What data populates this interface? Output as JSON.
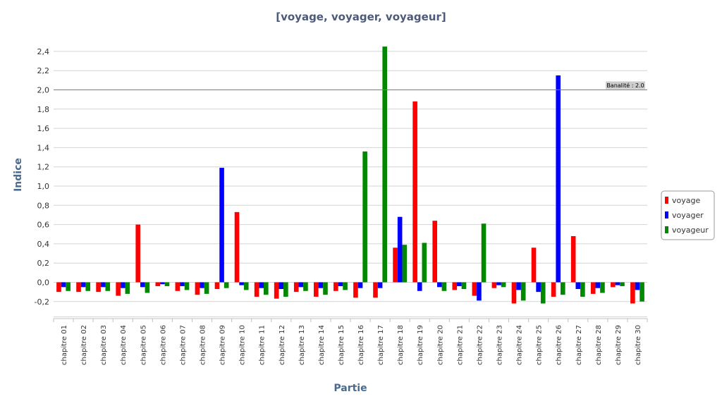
{
  "chart_data": {
    "type": "bar",
    "title": "[voyage, voyager, voyageur]",
    "xlabel": "Partie",
    "ylabel": "Indice",
    "ylim": [
      -0.3,
      2.5
    ],
    "yticks": [
      "2,4",
      "2,2",
      "2,0",
      "1,8",
      "1,6",
      "1,4",
      "1,2",
      "1,0",
      "0,8",
      "0,6",
      "0,4",
      "0,2",
      "0,0",
      "-0,2"
    ],
    "ytick_values": [
      2.4,
      2.2,
      2.0,
      1.8,
      1.6,
      1.4,
      1.2,
      1.0,
      0.8,
      0.6,
      0.4,
      0.2,
      0.0,
      -0.2
    ],
    "grid": true,
    "legend_position": "right",
    "threshold": {
      "label": "Banalité : 2.0",
      "value": 2.0,
      "color": "#e05050"
    },
    "categories": [
      "chapitre 01",
      "chapitre 02",
      "chapitre 03",
      "chapitre 04",
      "chapitre 05",
      "chapitre 06",
      "chapitre 07",
      "chapitre 08",
      "chapitre 09",
      "chapitre 10",
      "chapitre 11",
      "chapitre 12",
      "chapitre 13",
      "chapitre 14",
      "chapitre 15",
      "chapitre 16",
      "chapitre 17",
      "chapitre 18",
      "chapitre 19",
      "chapitre 20",
      "chapitre 21",
      "chapitre 22",
      "chapitre 23",
      "chapitre 24",
      "chapitre 25",
      "chapitre 26",
      "chapitre 27",
      "chapitre 28",
      "chapitre 29",
      "chapitre 30"
    ],
    "series": [
      {
        "name": "voyage",
        "color": "#ff0000",
        "values": [
          -0.1,
          -0.1,
          -0.1,
          -0.14,
          0.6,
          -0.04,
          -0.09,
          -0.13,
          -0.07,
          0.73,
          -0.15,
          -0.17,
          -0.1,
          -0.15,
          -0.09,
          -0.16,
          -0.16,
          0.36,
          1.88,
          0.64,
          -0.08,
          -0.14,
          -0.06,
          -0.22,
          0.36,
          -0.15,
          0.48,
          -0.12,
          -0.05,
          -0.22
        ]
      },
      {
        "name": "voyager",
        "color": "#0000ff",
        "values": [
          -0.05,
          -0.05,
          -0.05,
          -0.06,
          -0.05,
          -0.02,
          -0.04,
          -0.06,
          1.19,
          -0.03,
          -0.06,
          -0.07,
          -0.05,
          -0.06,
          -0.04,
          -0.06,
          -0.06,
          0.68,
          -0.09,
          -0.05,
          -0.04,
          -0.19,
          -0.03,
          -0.08,
          -0.1,
          2.15,
          -0.07,
          -0.06,
          -0.03,
          -0.08
        ]
      },
      {
        "name": "voyageur",
        "color": "#008800",
        "values": [
          -0.09,
          -0.09,
          -0.09,
          -0.12,
          -0.11,
          -0.04,
          -0.08,
          -0.12,
          -0.06,
          -0.08,
          -0.13,
          -0.15,
          -0.09,
          -0.13,
          -0.08,
          1.36,
          2.45,
          0.39,
          0.41,
          -0.09,
          -0.07,
          0.61,
          -0.05,
          -0.19,
          -0.22,
          -0.13,
          -0.15,
          -0.11,
          -0.04,
          -0.2
        ]
      }
    ]
  }
}
